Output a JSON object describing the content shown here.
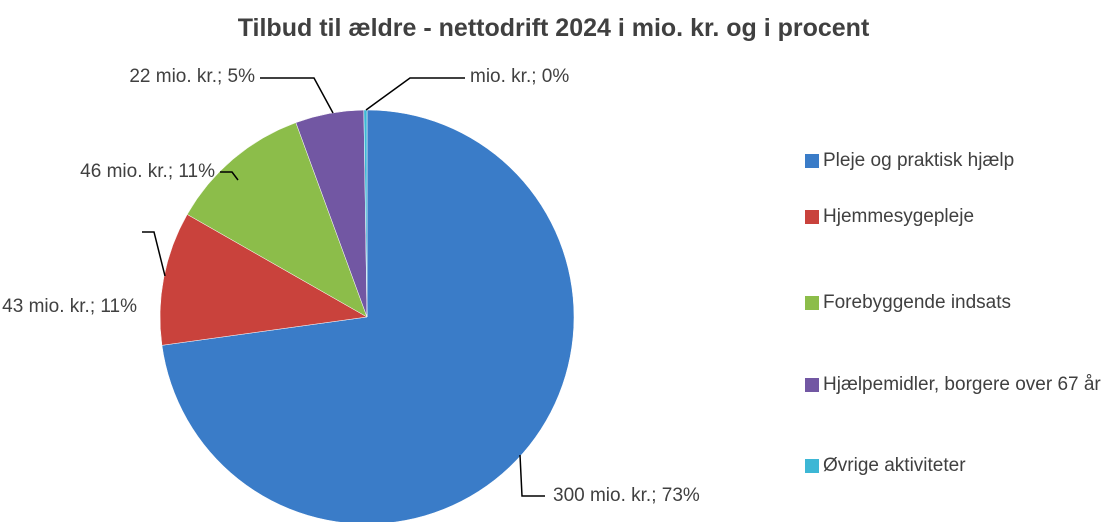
{
  "chart_data": {
    "type": "pie",
    "title": "Tilbud til ældre - nettodrift 2024 i mio. kr. og i procent",
    "categories": [
      "Pleje og praktisk hjælp",
      "Hjemmesygepleje",
      "Forebyggende indsats",
      "Hjælpemidler, borgere over 67 år",
      "Øvrige aktiviteter"
    ],
    "values": [
      300,
      43,
      46,
      22,
      1
    ],
    "value_labels": [
      "300 mio. kr.; 73%",
      "43 mio. kr.; 11%",
      "46 mio. kr.; 11%",
      "22 mio. kr.; 5%",
      "mio. kr.; 0%"
    ],
    "colors": [
      "#3a7cc8",
      "#c9423c",
      "#8cbd4a",
      "#7257a3",
      "#3db7d5"
    ],
    "legend": "right"
  }
}
